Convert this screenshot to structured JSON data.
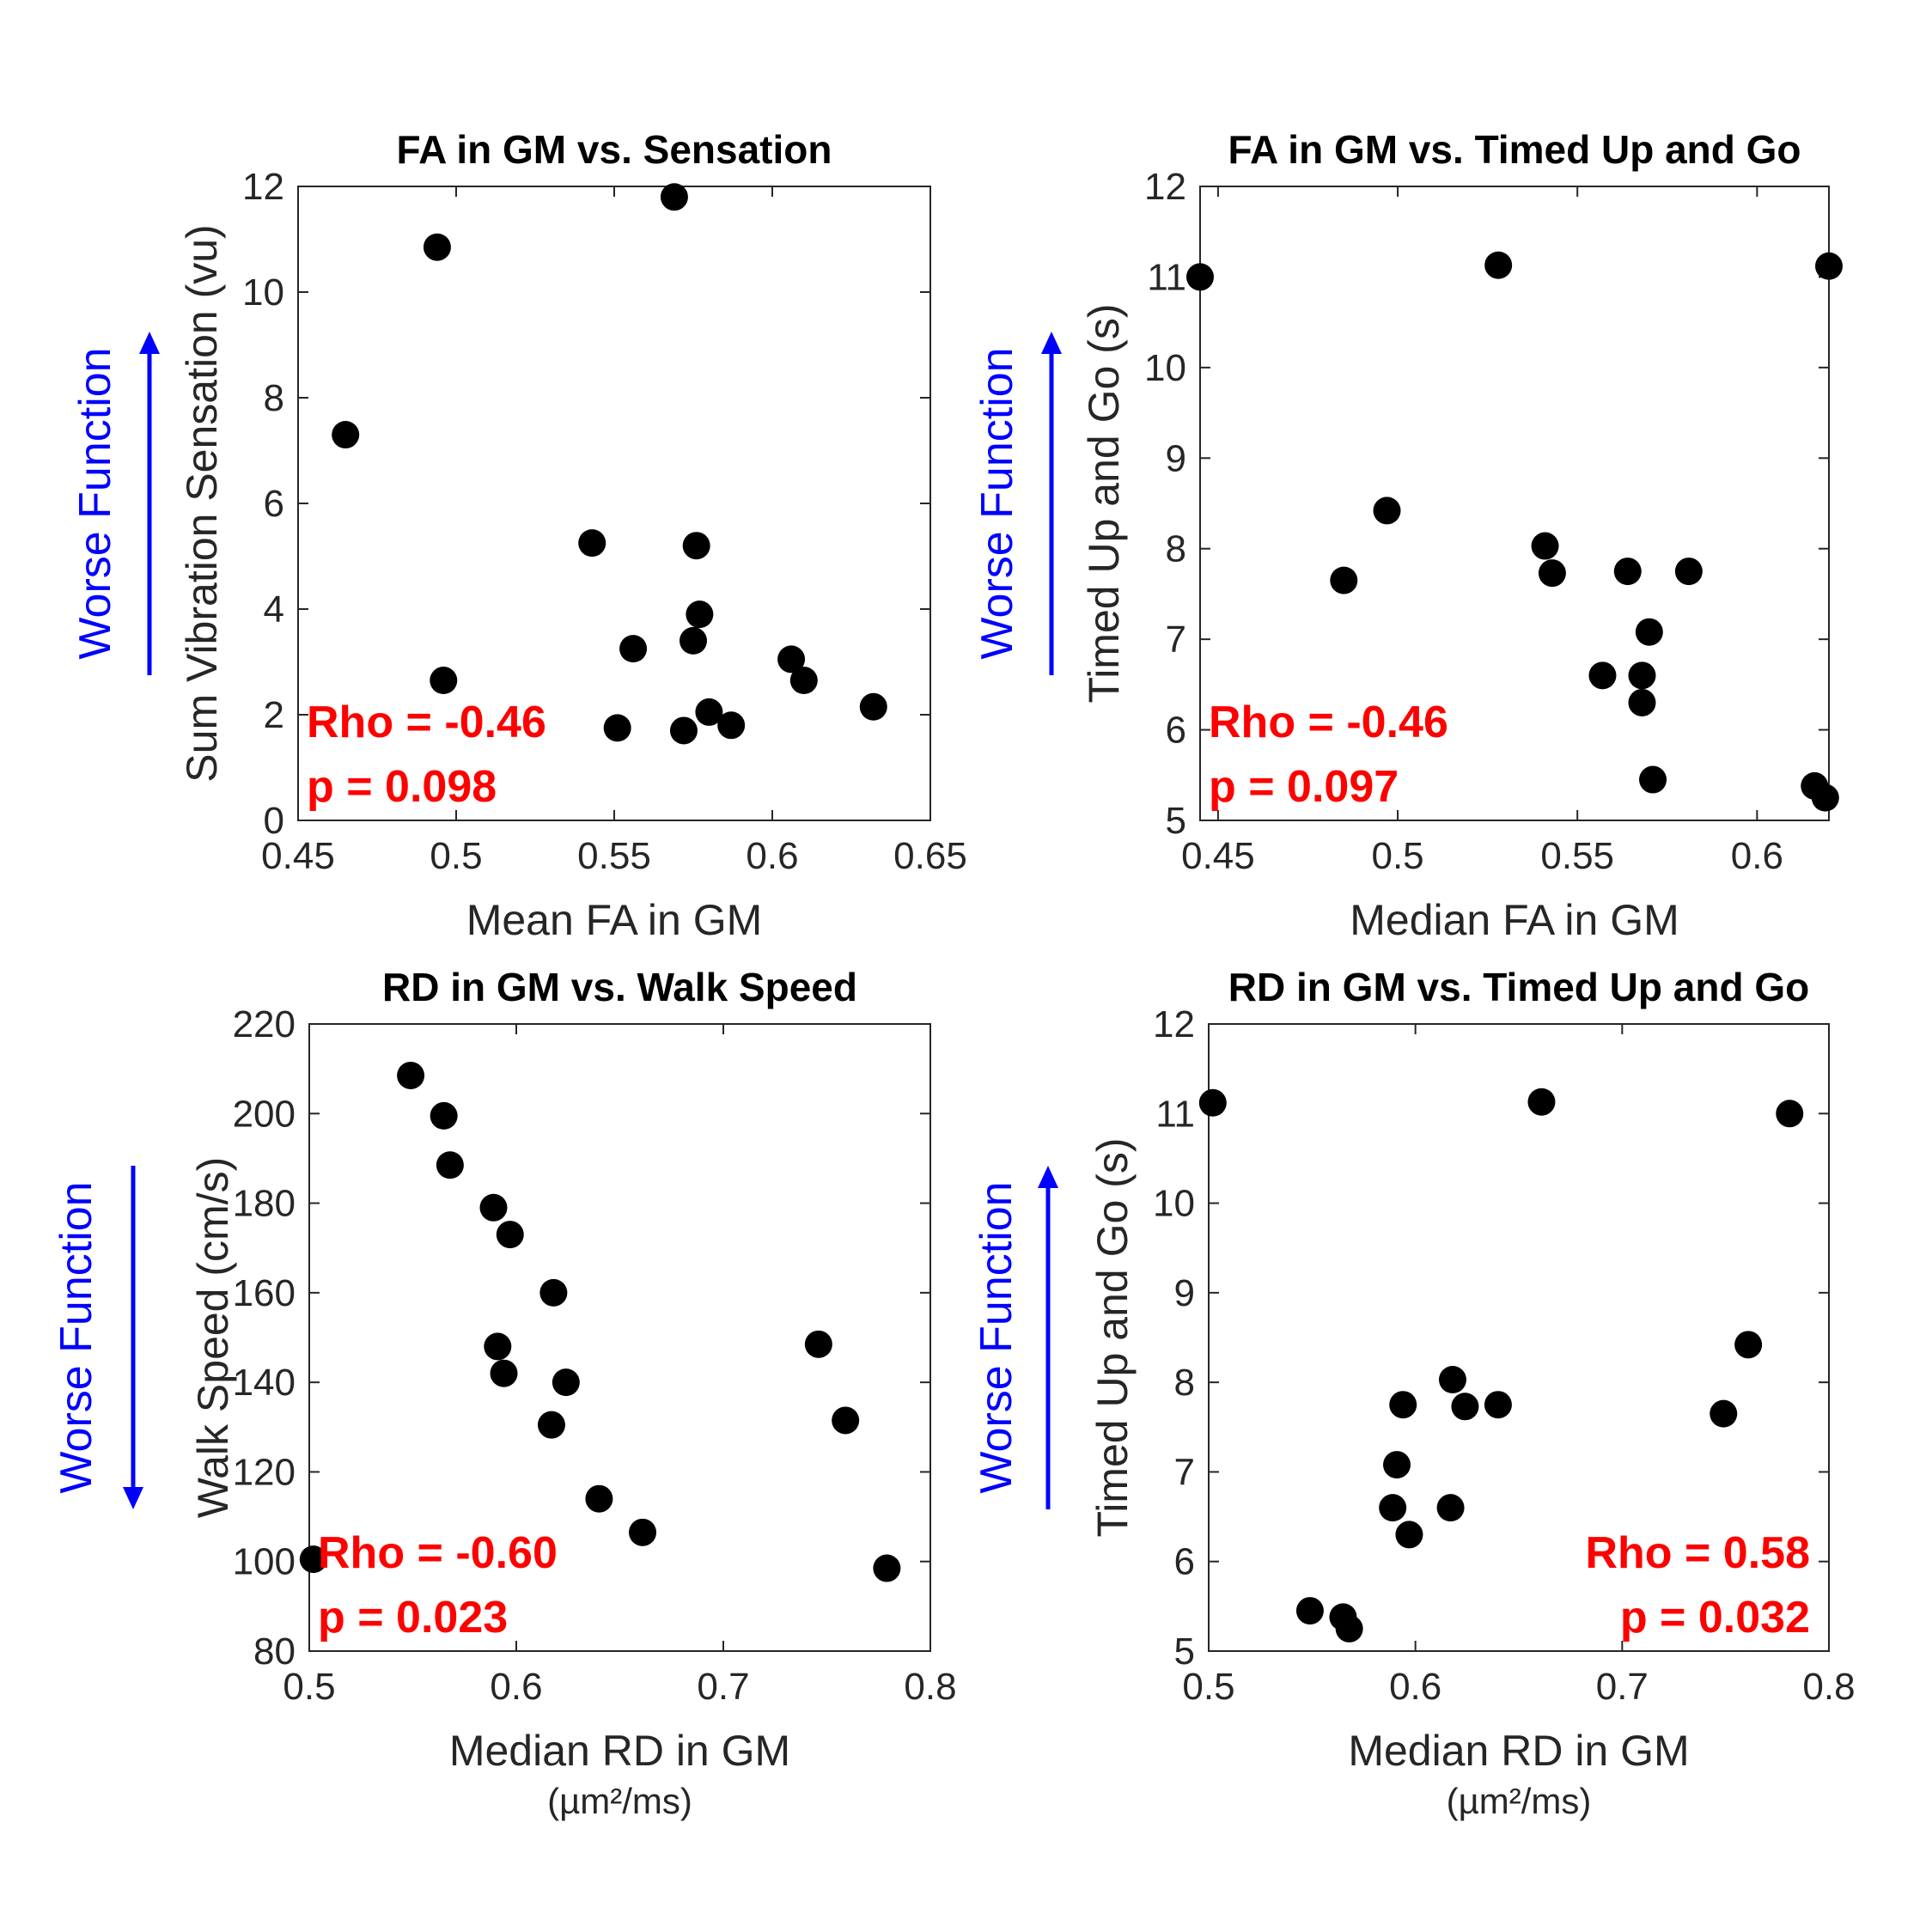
{
  "chart_data": [
    {
      "type": "scatter",
      "title": "FA in GM vs. Sensation",
      "xlabel": "Mean FA in GM",
      "xlabel_unit": "",
      "ylabel": "Sum Vibration Sensation (vu)",
      "xlim": [
        0.45,
        0.65
      ],
      "ylim": [
        0,
        12
      ],
      "xticks": [
        0.45,
        0.5,
        0.55,
        0.6,
        0.65
      ],
      "xtick_labels": [
        "0.45",
        "0.5",
        "0.55",
        "0.6",
        "0.65"
      ],
      "yticks": [
        0,
        2,
        4,
        6,
        8,
        10,
        12
      ],
      "ytick_labels": [
        "0",
        "2",
        "4",
        "6",
        "8",
        "10",
        "12"
      ],
      "rho": "Rho = -0.46",
      "p": "p = 0.098",
      "stat_position": "bottom-left",
      "annotation": "Worse Function",
      "annotation_arrow": "up",
      "annotation_color": "#0000ff",
      "marker_color": "#000000",
      "points": [
        {
          "x": 0.465,
          "y": 7.3
        },
        {
          "x": 0.494,
          "y": 10.85
        },
        {
          "x": 0.496,
          "y": 2.65
        },
        {
          "x": 0.543,
          "y": 5.25
        },
        {
          "x": 0.551,
          "y": 1.75
        },
        {
          "x": 0.556,
          "y": 3.25
        },
        {
          "x": 0.569,
          "y": 11.8
        },
        {
          "x": 0.572,
          "y": 1.7
        },
        {
          "x": 0.575,
          "y": 3.4
        },
        {
          "x": 0.576,
          "y": 5.2
        },
        {
          "x": 0.577,
          "y": 3.9
        },
        {
          "x": 0.58,
          "y": 2.05
        },
        {
          "x": 0.587,
          "y": 1.8
        },
        {
          "x": 0.606,
          "y": 3.05
        },
        {
          "x": 0.61,
          "y": 2.65
        },
        {
          "x": 0.632,
          "y": 2.15
        }
      ]
    },
    {
      "type": "scatter",
      "title": "FA in GM vs. Timed Up and Go",
      "xlabel": "Median FA in GM",
      "xlabel_unit": "",
      "ylabel": "Timed Up and Go (s)",
      "xlim": [
        0.445,
        0.62
      ],
      "ylim": [
        5,
        12
      ],
      "xticks": [
        0.45,
        0.5,
        0.55,
        0.6
      ],
      "xtick_labels": [
        "0.45",
        "0.5",
        "0.55",
        "0.6"
      ],
      "yticks": [
        5,
        6,
        7,
        8,
        9,
        10,
        11,
        12
      ],
      "ytick_labels": [
        "5",
        "6",
        "7",
        "8",
        "9",
        "10",
        "11",
        "12"
      ],
      "rho": "Rho = -0.46",
      "p": "p = 0.097",
      "stat_position": "bottom-left",
      "annotation": "Worse Function",
      "annotation_arrow": "up",
      "annotation_color": "#0000ff",
      "marker_color": "#000000",
      "points": [
        {
          "x": 0.445,
          "y": 11.0
        },
        {
          "x": 0.485,
          "y": 7.65
        },
        {
          "x": 0.497,
          "y": 8.42
        },
        {
          "x": 0.528,
          "y": 11.13
        },
        {
          "x": 0.541,
          "y": 8.03
        },
        {
          "x": 0.543,
          "y": 7.73
        },
        {
          "x": 0.557,
          "y": 6.6
        },
        {
          "x": 0.564,
          "y": 7.75
        },
        {
          "x": 0.568,
          "y": 6.6
        },
        {
          "x": 0.568,
          "y": 6.3
        },
        {
          "x": 0.57,
          "y": 7.08
        },
        {
          "x": 0.571,
          "y": 5.45
        },
        {
          "x": 0.581,
          "y": 7.75
        },
        {
          "x": 0.616,
          "y": 5.38
        },
        {
          "x": 0.619,
          "y": 5.25
        },
        {
          "x": 0.62,
          "y": 11.12
        }
      ]
    },
    {
      "type": "scatter",
      "title": "RD in GM vs. Walk Speed",
      "xlabel": "Median RD in GM",
      "xlabel_unit": "(µm²/ms)",
      "ylabel": "Walk Speed (cm/s)",
      "xlim": [
        0.5,
        0.8
      ],
      "ylim": [
        80,
        220
      ],
      "xticks": [
        0.5,
        0.6,
        0.7,
        0.8
      ],
      "xtick_labels": [
        "0.5",
        "0.6",
        "0.7",
        "0.8"
      ],
      "yticks": [
        80,
        100,
        120,
        140,
        160,
        180,
        200,
        220
      ],
      "ytick_labels": [
        "80",
        "100",
        "120",
        "140",
        "160",
        "180",
        "200",
        "220"
      ],
      "rho": "Rho = -0.60",
      "p": "p = 0.023",
      "stat_position": "bottom-left",
      "annotation": "Worse Function",
      "annotation_arrow": "down",
      "annotation_color": "#0000ff",
      "marker_color": "#000000",
      "points": [
        {
          "x": 0.502,
          "y": 100.5
        },
        {
          "x": 0.549,
          "y": 208.5
        },
        {
          "x": 0.565,
          "y": 199.5
        },
        {
          "x": 0.568,
          "y": 188.5
        },
        {
          "x": 0.589,
          "y": 179.0
        },
        {
          "x": 0.591,
          "y": 148.0
        },
        {
          "x": 0.594,
          "y": 142.0
        },
        {
          "x": 0.597,
          "y": 173.0
        },
        {
          "x": 0.617,
          "y": 130.5
        },
        {
          "x": 0.618,
          "y": 160.0
        },
        {
          "x": 0.624,
          "y": 140.0
        },
        {
          "x": 0.64,
          "y": 114.0
        },
        {
          "x": 0.661,
          "y": 106.5
        },
        {
          "x": 0.746,
          "y": 148.5
        },
        {
          "x": 0.759,
          "y": 131.5
        },
        {
          "x": 0.779,
          "y": 98.5
        }
      ]
    },
    {
      "type": "scatter",
      "title": "RD in GM vs. Timed Up and Go",
      "xlabel": "Median RD in GM",
      "xlabel_unit": "(µm²/ms)",
      "ylabel": "Timed Up and Go (s)",
      "xlim": [
        0.5,
        0.8
      ],
      "ylim": [
        5,
        12
      ],
      "xticks": [
        0.5,
        0.6,
        0.7,
        0.8
      ],
      "xtick_labels": [
        "0.5",
        "0.6",
        "0.7",
        "0.8"
      ],
      "yticks": [
        5,
        6,
        7,
        8,
        9,
        10,
        11,
        12
      ],
      "ytick_labels": [
        "5",
        "6",
        "7",
        "8",
        "9",
        "10",
        "11",
        "12"
      ],
      "rho": "Rho = 0.58",
      "p": "p = 0.032",
      "stat_position": "bottom-right",
      "annotation": "Worse Function",
      "annotation_arrow": "up",
      "annotation_color": "#0000ff",
      "marker_color": "#000000",
      "points": [
        {
          "x": 0.502,
          "y": 11.12
        },
        {
          "x": 0.549,
          "y": 5.45
        },
        {
          "x": 0.565,
          "y": 5.38
        },
        {
          "x": 0.568,
          "y": 5.25
        },
        {
          "x": 0.589,
          "y": 6.6
        },
        {
          "x": 0.591,
          "y": 7.08
        },
        {
          "x": 0.594,
          "y": 7.75
        },
        {
          "x": 0.597,
          "y": 6.3
        },
        {
          "x": 0.617,
          "y": 6.6
        },
        {
          "x": 0.618,
          "y": 8.03
        },
        {
          "x": 0.624,
          "y": 7.73
        },
        {
          "x": 0.64,
          "y": 7.75
        },
        {
          "x": 0.661,
          "y": 11.13
        },
        {
          "x": 0.749,
          "y": 7.65
        },
        {
          "x": 0.761,
          "y": 8.42
        },
        {
          "x": 0.781,
          "y": 11.0
        }
      ]
    }
  ]
}
